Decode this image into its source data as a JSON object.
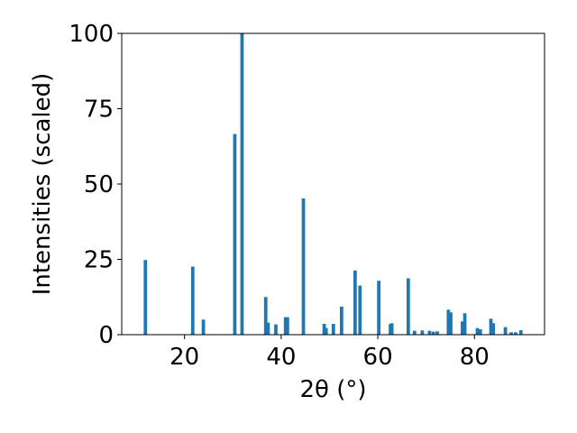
{
  "chart_data": {
    "type": "bar",
    "xlabel": "2θ (°)",
    "ylabel": "Intensities (scaled)",
    "xlim": [
      7,
      94.5
    ],
    "ylim": [
      0,
      100
    ],
    "x_ticks": [
      20,
      40,
      60,
      80
    ],
    "y_ticks": [
      0,
      25,
      50,
      75,
      100
    ],
    "grid": false,
    "bar_color": "#1f77b4",
    "bar_width": 0.7,
    "x": [
      11.9,
      21.7,
      23.9,
      30.4,
      31.9,
      36.8,
      37.3,
      38.9,
      40.9,
      41.3,
      44.6,
      48.9,
      49.3,
      50.8,
      52.5,
      55.3,
      56.3,
      60.2,
      62.6,
      62.9,
      66.3,
      67.6,
      69.2,
      70.7,
      71.5,
      72.3,
      74.6,
      75.1,
      77.5,
      78.0,
      80.6,
      81.2,
      83.4,
      83.9,
      86.4,
      87.6,
      88.5,
      89.6
    ],
    "values": [
      24.8,
      22.6,
      5.0,
      66.6,
      100.0,
      12.5,
      4.0,
      3.4,
      5.8,
      5.8,
      45.2,
      3.6,
      2.2,
      3.6,
      9.3,
      21.3,
      16.3,
      17.9,
      3.5,
      3.8,
      18.7,
      1.3,
      1.4,
      1.3,
      1.0,
      1.1,
      8.3,
      7.4,
      4.4,
      7.1,
      2.2,
      1.8,
      5.3,
      3.8,
      2.5,
      0.8,
      0.8,
      1.5
    ]
  }
}
